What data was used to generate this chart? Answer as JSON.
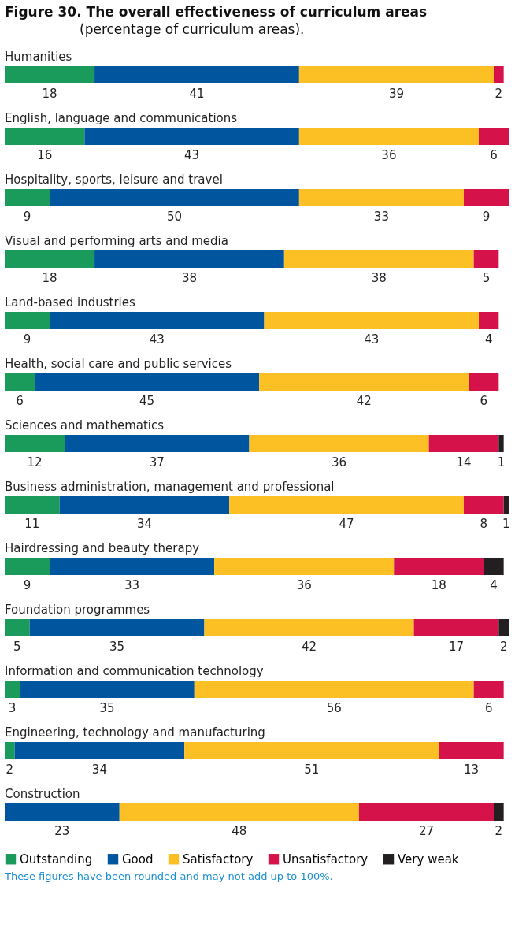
{
  "chart_data": {
    "type": "bar",
    "orientation": "horizontal",
    "stacked": true,
    "data_labels": true,
    "legend": "bottom",
    "title": "Figure 30. The overall effectiveness of curriculum areas",
    "subtitle": "(percentage of curriculum areas).",
    "categories": [
      "Humanities",
      "English, language and communications",
      "Hospitality, sports, leisure and travel",
      "Visual and performing arts and media",
      "Land-based industries",
      "Health, social care and public services",
      "Sciences and mathematics",
      "Business administration, management and professional",
      "Hairdressing and beauty therapy",
      "Foundation programmes",
      "Information and communication technology",
      "Engineering, technology and manufacturing",
      "Construction"
    ],
    "series": [
      {
        "name": "Outstanding",
        "color": "#1a9a5b",
        "values": [
          18,
          16,
          9,
          18,
          9,
          6,
          12,
          11,
          9,
          5,
          3,
          2,
          null
        ]
      },
      {
        "name": "Good",
        "color": "#00559f",
        "values": [
          41,
          43,
          50,
          38,
          43,
          45,
          37,
          34,
          33,
          35,
          35,
          34,
          23
        ]
      },
      {
        "name": "Satisfactory",
        "color": "#fdc024",
        "values": [
          39,
          36,
          33,
          38,
          43,
          42,
          36,
          47,
          36,
          42,
          56,
          51,
          48
        ]
      },
      {
        "name": "Unsatisfactory",
        "color": "#d5124a",
        "values": [
          2,
          6,
          9,
          5,
          4,
          6,
          14,
          8,
          18,
          17,
          6,
          13,
          27
        ]
      },
      {
        "name": "Very weak",
        "color": "#231f20",
        "values": [
          null,
          null,
          null,
          null,
          null,
          null,
          1,
          1,
          4,
          2,
          null,
          null,
          2
        ]
      }
    ],
    "annotations": [
      "These figures have been rounded and may not add up to 100%."
    ]
  }
}
